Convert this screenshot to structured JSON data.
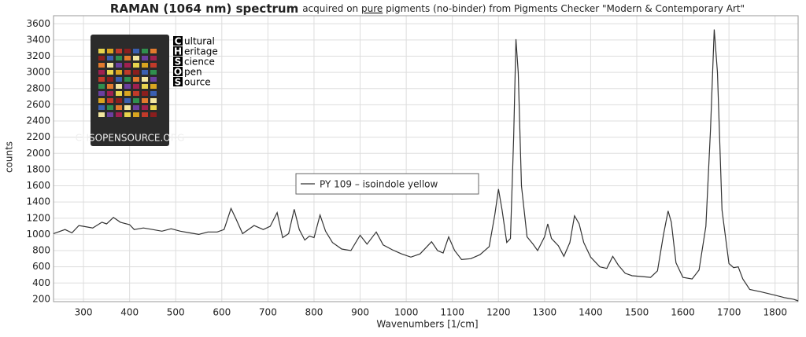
{
  "chart_data": {
    "type": "line",
    "title": "RAMAN (1064 nm) spectrum",
    "subtitle": [
      "acquired on ",
      "pure",
      " pigments (no-binder) from Pigments Checker \"Modern & Contemporary Art\""
    ],
    "xlabel": "Wavenumbers [1/cm]",
    "ylabel": "counts",
    "x": [
      235,
      260,
      275,
      290,
      300,
      320,
      340,
      350,
      365,
      380,
      400,
      410,
      430,
      450,
      470,
      490,
      510,
      530,
      550,
      570,
      590,
      605,
      620,
      630,
      645,
      660,
      670,
      690,
      705,
      720,
      732,
      745,
      757,
      768,
      780,
      790,
      800,
      813,
      825,
      840,
      860,
      880,
      900,
      915,
      935,
      950,
      970,
      990,
      1010,
      1030,
      1055,
      1068,
      1080,
      1092,
      1105,
      1120,
      1140,
      1160,
      1180,
      1192,
      1200,
      1208,
      1218,
      1226,
      1233,
      1238,
      1243,
      1250,
      1262,
      1275,
      1285,
      1300,
      1307,
      1315,
      1330,
      1342,
      1355,
      1365,
      1375,
      1385,
      1400,
      1420,
      1435,
      1448,
      1460,
      1475,
      1490,
      1510,
      1530,
      1545,
      1558,
      1568,
      1575,
      1585,
      1600,
      1620,
      1635,
      1650,
      1660,
      1668,
      1675,
      1685,
      1700,
      1710,
      1720,
      1730,
      1745,
      1770,
      1800,
      1820,
      1840,
      1850
    ],
    "series": [
      {
        "name": "PY 109 – isoindole yellow",
        "color": "#333333",
        "values": [
          1010,
          1060,
          1020,
          1110,
          1100,
          1080,
          1150,
          1130,
          1210,
          1150,
          1120,
          1060,
          1080,
          1060,
          1040,
          1070,
          1040,
          1020,
          1000,
          1030,
          1030,
          1060,
          1320,
          1200,
          1010,
          1070,
          1110,
          1060,
          1100,
          1270,
          960,
          1010,
          1310,
          1060,
          930,
          980,
          960,
          1240,
          1040,
          900,
          820,
          800,
          990,
          880,
          1030,
          870,
          810,
          760,
          720,
          760,
          910,
          800,
          770,
          970,
          800,
          690,
          700,
          750,
          850,
          1240,
          1560,
          1300,
          900,
          950,
          2200,
          3410,
          3000,
          1600,
          970,
          880,
          800,
          970,
          1130,
          950,
          860,
          730,
          900,
          1230,
          1130,
          900,
          720,
          600,
          580,
          730,
          620,
          520,
          490,
          480,
          470,
          550,
          1000,
          1290,
          1150,
          650,
          470,
          450,
          560,
          1100,
          2300,
          3530,
          3000,
          1300,
          640,
          590,
          600,
          450,
          320,
          290,
          250,
          220,
          200,
          180
        ]
      }
    ],
    "xlim": [
      235,
      1850
    ],
    "ylim": [
      170,
      3700
    ],
    "xticks": [
      300,
      400,
      500,
      600,
      700,
      800,
      900,
      1000,
      1100,
      1200,
      1300,
      1400,
      1500,
      1600,
      1700,
      1800
    ],
    "yticks": [
      200,
      400,
      600,
      800,
      1000,
      1200,
      1400,
      1600,
      1800,
      2000,
      2200,
      2400,
      2600,
      2800,
      3000,
      3200,
      3400,
      3600
    ],
    "grid": true
  },
  "inset": {
    "letters": [
      "C",
      "H",
      "S",
      "O",
      "S"
    ],
    "words": [
      "ultural",
      "eritage",
      "cience",
      "pen",
      "ource"
    ],
    "caption": "CHSOPENSOURCE.ORG"
  }
}
